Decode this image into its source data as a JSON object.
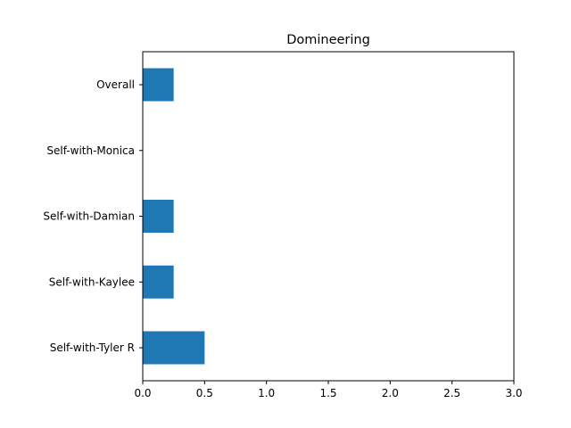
{
  "chart_data": {
    "type": "bar",
    "orientation": "horizontal",
    "title": "Domineering",
    "xlabel": "",
    "ylabel": "",
    "categories": [
      "Overall",
      "Self-with-Monica",
      "Self-with-Damian",
      "Self-with-Kaylee",
      "Self-with-Tyler R"
    ],
    "values": [
      0.25,
      0,
      0.25,
      0.25,
      0.5
    ],
    "xlim": [
      0,
      3
    ],
    "xticks": [
      "0.0",
      "0.5",
      "1.0",
      "1.5",
      "2.0",
      "2.5",
      "3.0"
    ],
    "grid": false,
    "bar_color": "#1f77b4"
  }
}
